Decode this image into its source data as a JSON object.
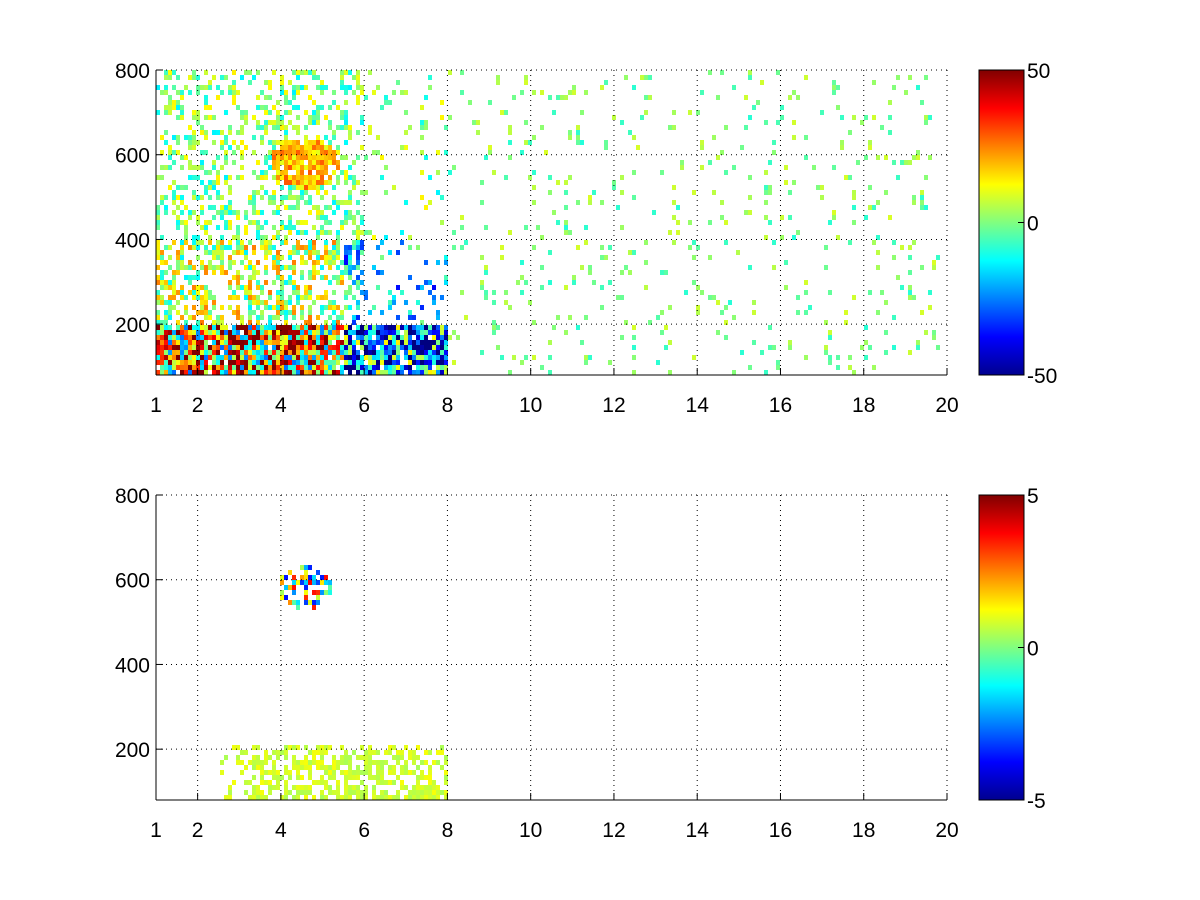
{
  "chart_data": [
    {
      "type": "heatmap",
      "xlim": [
        1,
        20
      ],
      "ylim": [
        80,
        800
      ],
      "xticks": [
        1,
        2,
        4,
        6,
        8,
        10,
        12,
        14,
        16,
        18,
        20
      ],
      "yticks": [
        200,
        400,
        600,
        800
      ],
      "xtick_labels": [
        "1",
        "2",
        "4",
        "6",
        "8",
        "10",
        "12",
        "14",
        "16",
        "18",
        "20"
      ],
      "ytick_labels": [
        "200",
        "400",
        "600",
        "800"
      ],
      "grid": true,
      "colormap": "jet",
      "clim": [
        -50,
        50
      ],
      "colorbar_ticks": [
        50,
        0,
        -50
      ],
      "colorbar_labels": [
        "50",
        "0",
        "-50"
      ],
      "blank_color": "#ffffff",
      "dense_region": {
        "x": [
          1,
          8
        ],
        "y": [
          80,
          200
        ],
        "value_range": [
          -50,
          50
        ]
      },
      "sparse_region": {
        "x": [
          8,
          20
        ],
        "y": [
          80,
          800
        ],
        "value_range": [
          -10,
          10
        ]
      },
      "hotspot": {
        "x": 4.6,
        "y": 580,
        "value": 20
      }
    },
    {
      "type": "heatmap",
      "xlim": [
        1,
        20
      ],
      "ylim": [
        80,
        800
      ],
      "xticks": [
        1,
        2,
        4,
        6,
        8,
        10,
        12,
        14,
        16,
        18,
        20
      ],
      "yticks": [
        200,
        400,
        600,
        800
      ],
      "xtick_labels": [
        "1",
        "2",
        "4",
        "6",
        "8",
        "10",
        "12",
        "14",
        "16",
        "18",
        "20"
      ],
      "ytick_labels": [
        "200",
        "400",
        "600",
        "800"
      ],
      "grid": true,
      "colormap": "jet",
      "clim": [
        -5,
        5
      ],
      "colorbar_ticks": [
        5,
        0,
        -5
      ],
      "colorbar_labels": [
        "5",
        "0",
        "-5"
      ],
      "blank_color": "#ffffff",
      "dense_region": {
        "x": [
          2,
          8
        ],
        "y": [
          80,
          210
        ],
        "value": 0.8
      },
      "hotspot": {
        "x": 4.6,
        "y": 580,
        "value": 3
      }
    }
  ]
}
